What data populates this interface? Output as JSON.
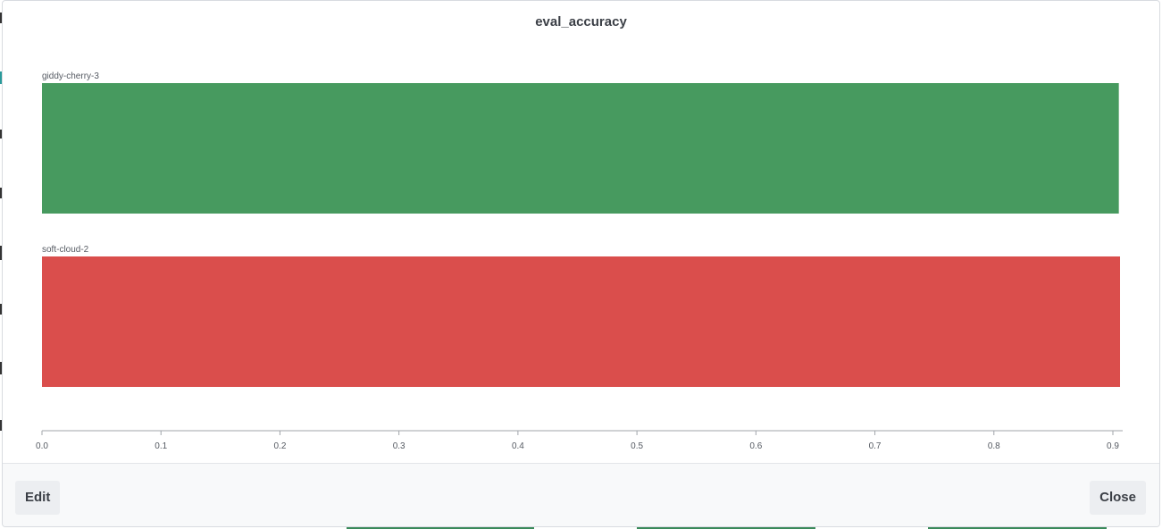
{
  "modal": {
    "title": "eval_accuracy",
    "edit_label": "Edit",
    "close_label": "Close"
  },
  "chart_data": {
    "type": "bar",
    "orientation": "horizontal",
    "categories": [
      "giddy-cherry-3",
      "soft-cloud-2"
    ],
    "values": [
      0.905,
      0.906
    ],
    "colors": [
      "#479a5f",
      "#da4e4c"
    ],
    "title": "eval_accuracy",
    "xlabel": "",
    "ylabel": "",
    "xlim": [
      0,
      0.9075
    ],
    "xticks": [
      "0.0",
      "0.1",
      "0.2",
      "0.3",
      "0.4",
      "0.5",
      "0.6",
      "0.7",
      "0.8",
      "0.9"
    ],
    "grid": false
  },
  "colors": {
    "axis": "#a0a4aa",
    "text": "#3b3f46",
    "footer_bg": "#f8f9fa",
    "button_bg": "#eceef1"
  }
}
